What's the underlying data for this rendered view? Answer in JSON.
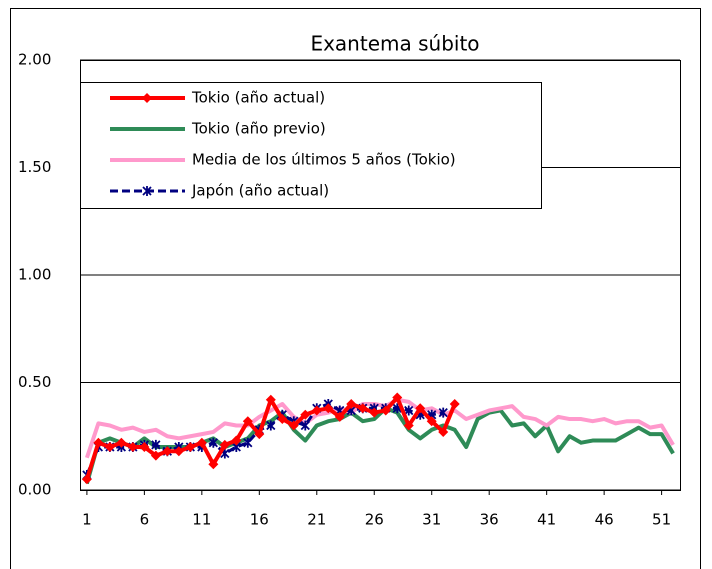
{
  "chart_data": {
    "type": "line",
    "title": "Exantema  súbito",
    "xlim": [
      0.4,
      52.6
    ],
    "xticks": [
      1,
      6,
      11,
      16,
      21,
      26,
      31,
      36,
      41,
      46,
      51
    ],
    "ylim": [
      0,
      2
    ],
    "yticks": [
      {
        "value": 0,
        "label": "0.00"
      },
      {
        "value": 0.5,
        "label": "0.50"
      },
      {
        "value": 1,
        "label": "1.00"
      },
      {
        "value": 1.5,
        "label": "1.50"
      },
      {
        "value": 2,
        "label": "2.00"
      }
    ],
    "grid": true,
    "legend": "upper left",
    "series": [
      {
        "name": "Tokio (año actual)",
        "color": "#ff0000",
        "marker": "diamond",
        "x": [
          1,
          2,
          3,
          4,
          5,
          6,
          7,
          8,
          9,
          10,
          11,
          12,
          13,
          14,
          15,
          16,
          17,
          18,
          19,
          20,
          21,
          22,
          23,
          24,
          25,
          26,
          27,
          28,
          29,
          30,
          31,
          32,
          33
        ],
        "values": [
          0.05,
          0.22,
          0.2,
          0.22,
          0.2,
          0.2,
          0.16,
          0.18,
          0.18,
          0.2,
          0.22,
          0.12,
          0.21,
          0.23,
          0.32,
          0.26,
          0.42,
          0.33,
          0.3,
          0.35,
          0.37,
          0.38,
          0.34,
          0.4,
          0.38,
          0.36,
          0.37,
          0.43,
          0.3,
          0.38,
          0.32,
          0.27,
          0.4
        ]
      },
      {
        "name": "Tokio (año previo)",
        "color": "#2e8b57",
        "marker": "none",
        "x": [
          1,
          2,
          3,
          4,
          5,
          6,
          7,
          8,
          9,
          10,
          11,
          12,
          13,
          14,
          15,
          16,
          17,
          18,
          19,
          20,
          21,
          22,
          23,
          24,
          25,
          26,
          27,
          28,
          29,
          30,
          31,
          32,
          33,
          34,
          35,
          36,
          37,
          38,
          39,
          40,
          41,
          42,
          43,
          44,
          45,
          46,
          47,
          48,
          49,
          50,
          51,
          52
        ],
        "values": [
          0.03,
          0.22,
          0.24,
          0.22,
          0.2,
          0.24,
          0.2,
          0.2,
          0.2,
          0.2,
          0.22,
          0.24,
          0.2,
          0.22,
          0.24,
          0.3,
          0.32,
          0.36,
          0.28,
          0.23,
          0.3,
          0.32,
          0.33,
          0.36,
          0.32,
          0.33,
          0.38,
          0.36,
          0.28,
          0.24,
          0.28,
          0.3,
          0.28,
          0.2,
          0.33,
          0.36,
          0.37,
          0.3,
          0.31,
          0.25,
          0.3,
          0.18,
          0.25,
          0.22,
          0.23,
          0.23,
          0.23,
          0.26,
          0.29,
          0.26,
          0.26,
          0.17
        ]
      },
      {
        "name": "Media de los últimos 5 años (Tokio)",
        "color": "#ff99cc",
        "marker": "none",
        "x": [
          1,
          2,
          3,
          4,
          5,
          6,
          7,
          8,
          9,
          10,
          11,
          12,
          13,
          14,
          15,
          16,
          17,
          18,
          19,
          20,
          21,
          22,
          23,
          24,
          25,
          26,
          27,
          28,
          29,
          30,
          31,
          32,
          33,
          34,
          35,
          36,
          37,
          38,
          39,
          40,
          41,
          42,
          43,
          44,
          45,
          46,
          47,
          48,
          49,
          50,
          51,
          52
        ],
        "values": [
          0.15,
          0.31,
          0.3,
          0.28,
          0.29,
          0.27,
          0.28,
          0.25,
          0.24,
          0.25,
          0.26,
          0.27,
          0.31,
          0.3,
          0.3,
          0.34,
          0.37,
          0.4,
          0.34,
          0.31,
          0.35,
          0.36,
          0.38,
          0.36,
          0.4,
          0.4,
          0.39,
          0.42,
          0.41,
          0.37,
          0.38,
          0.35,
          0.37,
          0.33,
          0.35,
          0.37,
          0.38,
          0.39,
          0.34,
          0.33,
          0.3,
          0.34,
          0.33,
          0.33,
          0.32,
          0.33,
          0.31,
          0.32,
          0.32,
          0.29,
          0.3,
          0.21
        ]
      },
      {
        "name": "Japón (año actual)",
        "color": "#000080",
        "marker": "x",
        "dash": true,
        "x": [
          1,
          2,
          3,
          4,
          5,
          6,
          7,
          8,
          9,
          10,
          11,
          12,
          13,
          14,
          15,
          16,
          17,
          18,
          19,
          20,
          21,
          22,
          23,
          24,
          25,
          26,
          27,
          28,
          29,
          30,
          31,
          32
        ],
        "values": [
          0.07,
          0.2,
          0.2,
          0.2,
          0.2,
          0.21,
          0.21,
          0.18,
          0.2,
          0.2,
          0.2,
          0.22,
          0.17,
          0.2,
          0.22,
          0.28,
          0.3,
          0.35,
          0.32,
          0.3,
          0.38,
          0.4,
          0.37,
          0.37,
          0.38,
          0.38,
          0.38,
          0.38,
          0.37,
          0.35,
          0.35,
          0.36
        ]
      }
    ]
  }
}
